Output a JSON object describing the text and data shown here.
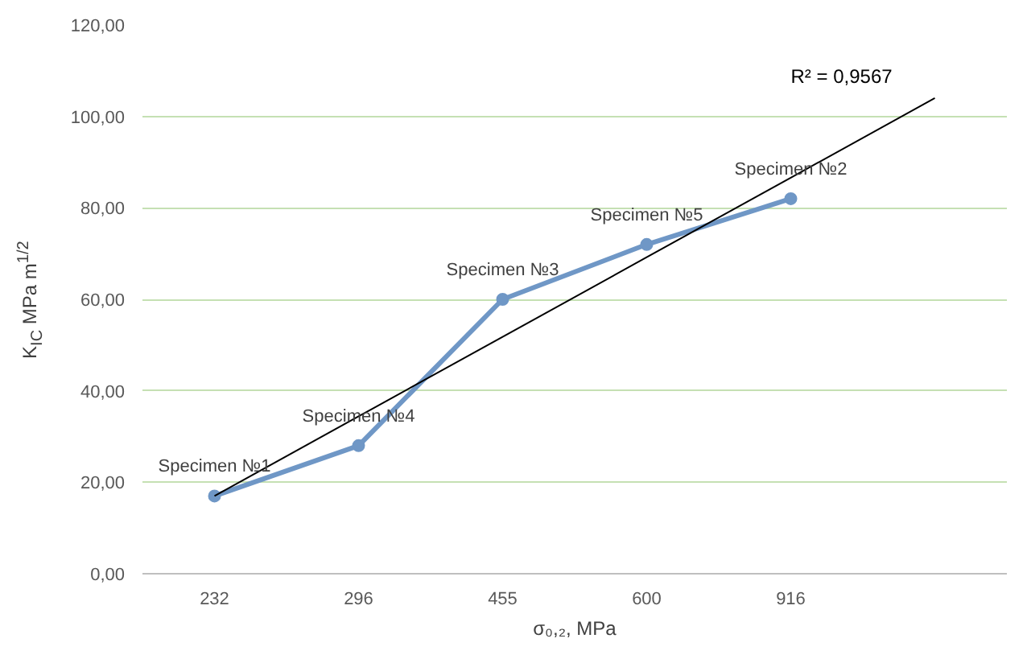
{
  "chart_data": {
    "type": "line",
    "xlabel": "σ₀,₂, MPa",
    "ylabel": "K$_{IC}$ MPa m$^{1/2}$",
    "categories": [
      "232",
      "296",
      "455",
      "600",
      "916",
      null
    ],
    "series": [
      {
        "color": "#6f97c6",
        "values": [
          17,
          28,
          60,
          72,
          82,
          null
        ],
        "marker": "circle"
      },
      {
        "type": "line",
        "color": "#000000",
        "values": [
          17.0,
          34.4,
          51.8,
          69.2,
          86.6,
          104.0
        ],
        "marker": "none"
      }
    ],
    "ylim": [
      0,
      120
    ],
    "yticks": [
      {
        "value": 0,
        "label": "0,00"
      },
      {
        "value": 20,
        "label": "20,00"
      },
      {
        "value": 40,
        "label": "40,00"
      },
      {
        "value": 60,
        "label": "60,00"
      },
      {
        "value": 80,
        "label": "80,00"
      },
      {
        "value": 100,
        "label": "100,00"
      },
      {
        "value": 120,
        "label": "120,00"
      }
    ],
    "grid": "y",
    "annotations": [
      {
        "text": "Specimen №1",
        "x": "232",
        "y": 17
      },
      {
        "text": "Specimen №4",
        "x": "296",
        "y": 28
      },
      {
        "text": "Specimen №3",
        "x": "455",
        "y": 60
      },
      {
        "text": "Specimen №5",
        "x": "600",
        "y": 72
      },
      {
        "text": "Specimen №2",
        "x": "916",
        "y": 82
      },
      "R² = 0,9567"
    ]
  }
}
